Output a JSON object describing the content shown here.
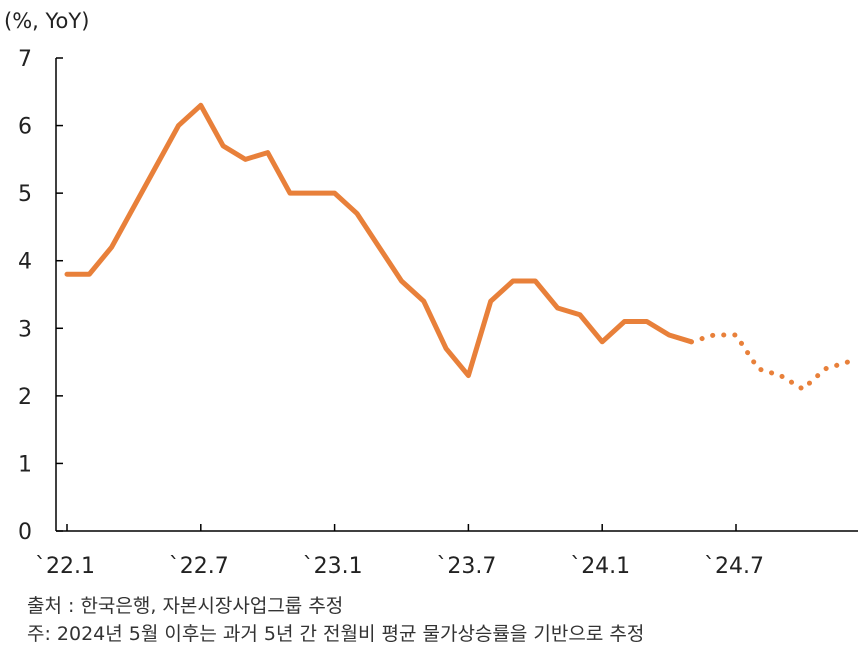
{
  "chart_data": {
    "type": "line",
    "unit_label": "(%, YoY)",
    "y_ticks": [
      "0",
      "1",
      "2",
      "3",
      "4",
      "5",
      "6",
      "7"
    ],
    "ylim": [
      0,
      7
    ],
    "x_tick_labels": [
      "`22.1",
      "`22.7",
      "`23.1",
      "`23.7",
      "`24.1",
      "`24.7"
    ],
    "x_tick_index": [
      0,
      6,
      12,
      18,
      24,
      30
    ],
    "n_periods": 36,
    "series_color": "#E8803A",
    "actual": [
      3.8,
      3.8,
      4.2,
      4.8,
      5.4,
      6.0,
      6.3,
      5.7,
      5.5,
      5.6,
      5.0,
      5.0,
      5.0,
      4.7,
      4.2,
      3.7,
      3.4,
      2.7,
      2.3,
      3.4,
      3.7,
      3.7,
      3.3,
      3.2,
      2.8,
      3.1,
      3.1,
      2.9,
      2.8
    ],
    "forecast_start_index": 28,
    "forecast": [
      2.8,
      2.9,
      2.9,
      2.4,
      2.3,
      2.1,
      2.4,
      2.5
    ]
  },
  "notes": {
    "source": "출처 : 한국은행, 자본시장사업그룹 추정",
    "footnote": "주: 2024년 5월 이후는 과거 5년 간 전월비 평균 물가상승률을 기반으로 추정"
  }
}
